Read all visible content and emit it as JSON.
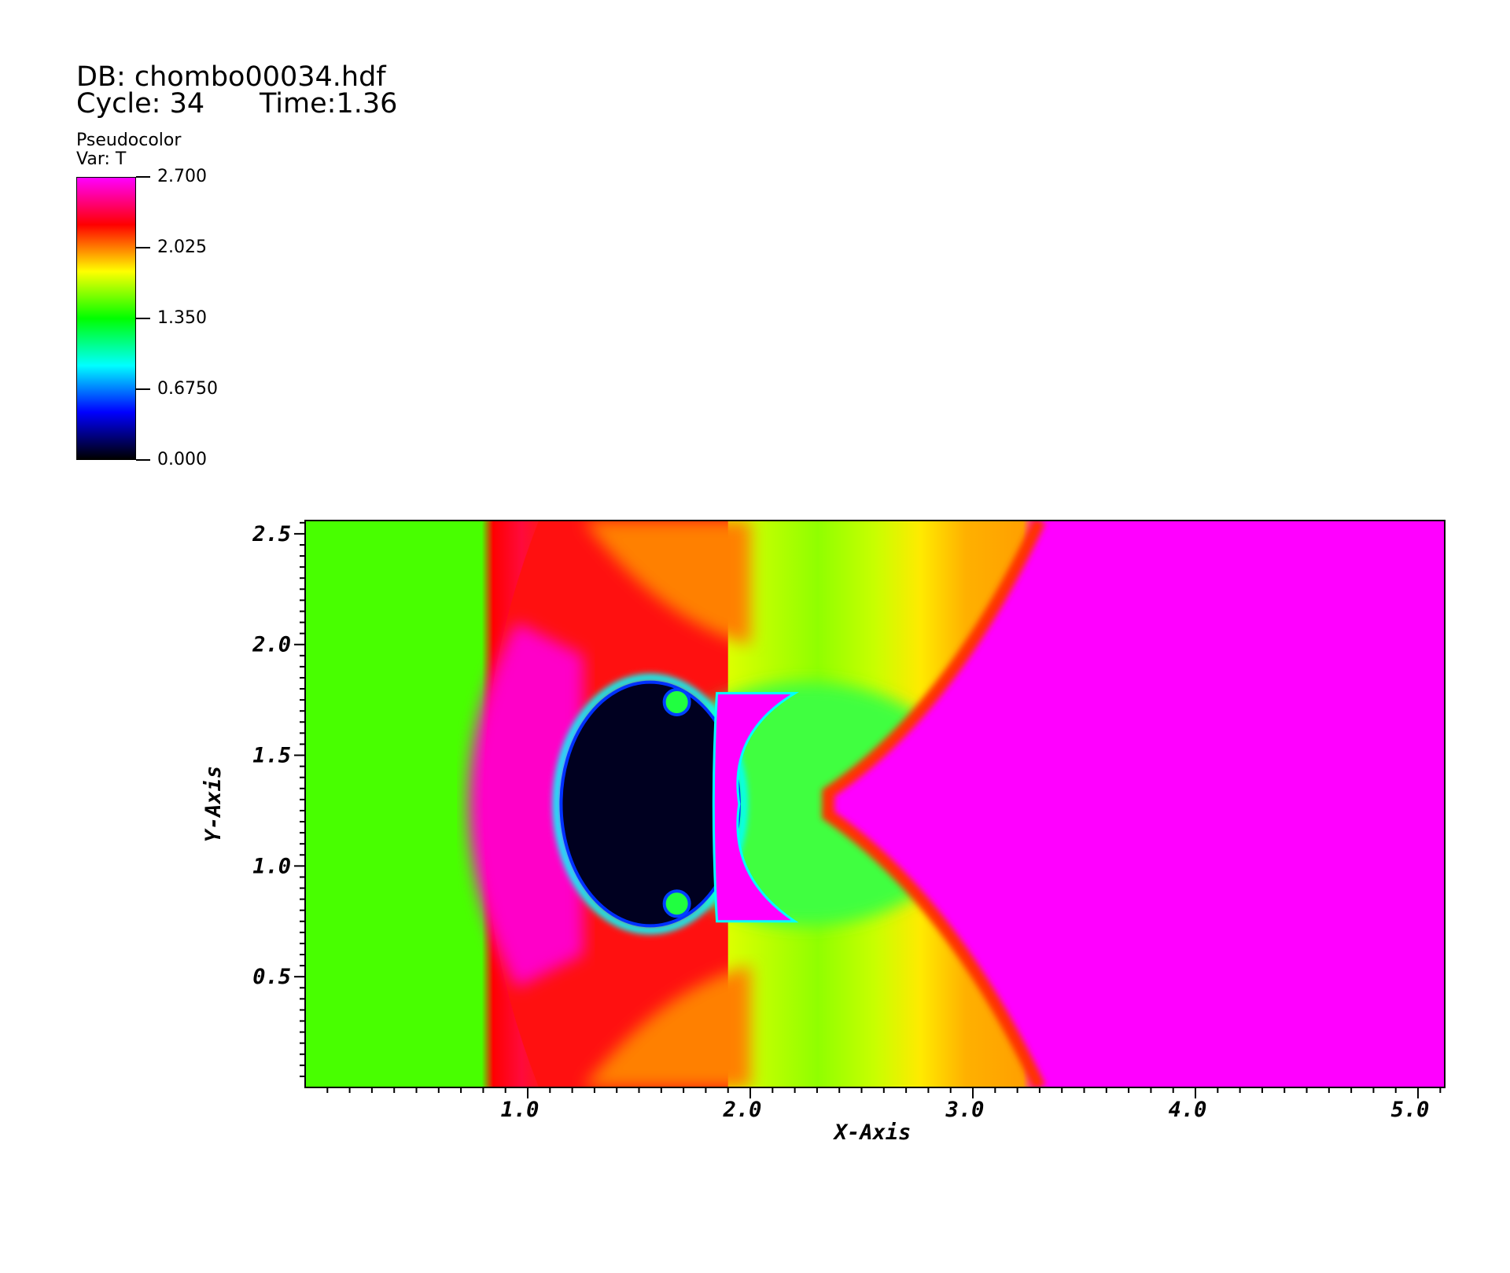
{
  "header": {
    "db_label": "DB: chombo00034.hdf",
    "cycle_label": "Cycle: 34",
    "time_label": "Time:1.36"
  },
  "legend": {
    "title": "Pseudocolor",
    "var": "Var: T",
    "ticks": [
      {
        "label": "2.700",
        "value": 2.7
      },
      {
        "label": "2.025",
        "value": 2.025
      },
      {
        "label": "1.350",
        "value": 1.35
      },
      {
        "label": "0.6750",
        "value": 0.675
      },
      {
        "label": "0.000",
        "value": 0.0
      }
    ],
    "colors": [
      "#ff00ff",
      "#ff0000",
      "#ffff00",
      "#00ff00",
      "#00ffff",
      "#0000ff",
      "#000000"
    ]
  },
  "chart_data": {
    "type": "heatmap",
    "title": "",
    "xlabel": "X-Axis",
    "ylabel": "Y-Axis",
    "xlim": [
      0.0,
      5.12
    ],
    "ylim": [
      0.0,
      2.56
    ],
    "xticks": [
      {
        "label": "1.0",
        "value": 1.0
      },
      {
        "label": "2.0",
        "value": 2.0
      },
      {
        "label": "3.0",
        "value": 3.0
      },
      {
        "label": "4.0",
        "value": 4.0
      },
      {
        "label": "5.0",
        "value": 5.0
      }
    ],
    "yticks": [
      {
        "label": "0.5",
        "value": 0.5
      },
      {
        "label": "1.0",
        "value": 1.0
      },
      {
        "label": "1.5",
        "value": 1.5
      },
      {
        "label": "2.0",
        "value": 2.0
      },
      {
        "label": "2.5",
        "value": 2.5
      }
    ],
    "variable": "T",
    "value_range": [
      0.0,
      2.7
    ],
    "colormap": [
      "#ff00ff",
      "#ff0000",
      "#ffff00",
      "#00ff00",
      "#00ffff",
      "#0000ff",
      "#000000"
    ],
    "regions": [
      {
        "region": "ambient-left",
        "x_range": [
          0.0,
          0.7
        ],
        "T": 1.4
      },
      {
        "region": "shocked-layer",
        "x_range": [
          0.7,
          1.6
        ],
        "T": 2.4
      },
      {
        "region": "mixing-zone",
        "x_range": [
          1.6,
          2.9
        ],
        "T": 1.7
      },
      {
        "region": "bubble-core",
        "center": [
          1.5,
          1.28
        ],
        "T": 0.05
      },
      {
        "region": "post-shock-right",
        "x_range": [
          3.3,
          5.12
        ],
        "T": 2.7
      }
    ]
  }
}
